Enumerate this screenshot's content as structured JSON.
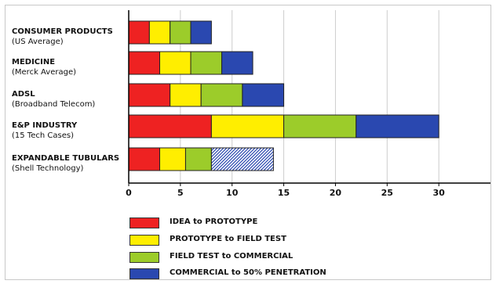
{
  "chart_data": {
    "type": "bar",
    "orientation": "horizontal",
    "stacked": true,
    "categories": [
      {
        "name": "CONSUMER PRODUCTS",
        "sub": "(US Average)"
      },
      {
        "name": "MEDICINE",
        "sub": "(Merck Average)"
      },
      {
        "name": "ADSL",
        "sub": "(Broadband Telecom)"
      },
      {
        "name": "E&P INDUSTRY",
        "sub": "(15 Tech Cases)"
      },
      {
        "name": "EXPANDABLE TUBULARS",
        "sub": "(Shell Technology)"
      }
    ],
    "series": [
      {
        "name": "IDEA to PROTOTYPE",
        "color": "#ee2222",
        "values": [
          2,
          3,
          4,
          8,
          3
        ]
      },
      {
        "name": "PROTOTYPE to FIELD TEST",
        "color": "#ffee00",
        "values": [
          2,
          3,
          3,
          7,
          2.5
        ]
      },
      {
        "name": "FIELD TEST to COMMERCIAL",
        "color": "#9ccc2a",
        "values": [
          2,
          3,
          4,
          7,
          2.5
        ]
      },
      {
        "name": "COMMERCIAL to 50% PENETRATION",
        "color": "#2a48b0",
        "values": [
          2,
          3,
          4,
          8,
          6
        ]
      }
    ],
    "hatched_segments": [
      {
        "category_index": 4,
        "series_index": 3
      }
    ],
    "xticks": [
      0,
      5,
      10,
      15,
      20,
      25,
      30
    ],
    "xlim": [
      0,
      35
    ],
    "grid": true,
    "legend_position": "bottom"
  }
}
